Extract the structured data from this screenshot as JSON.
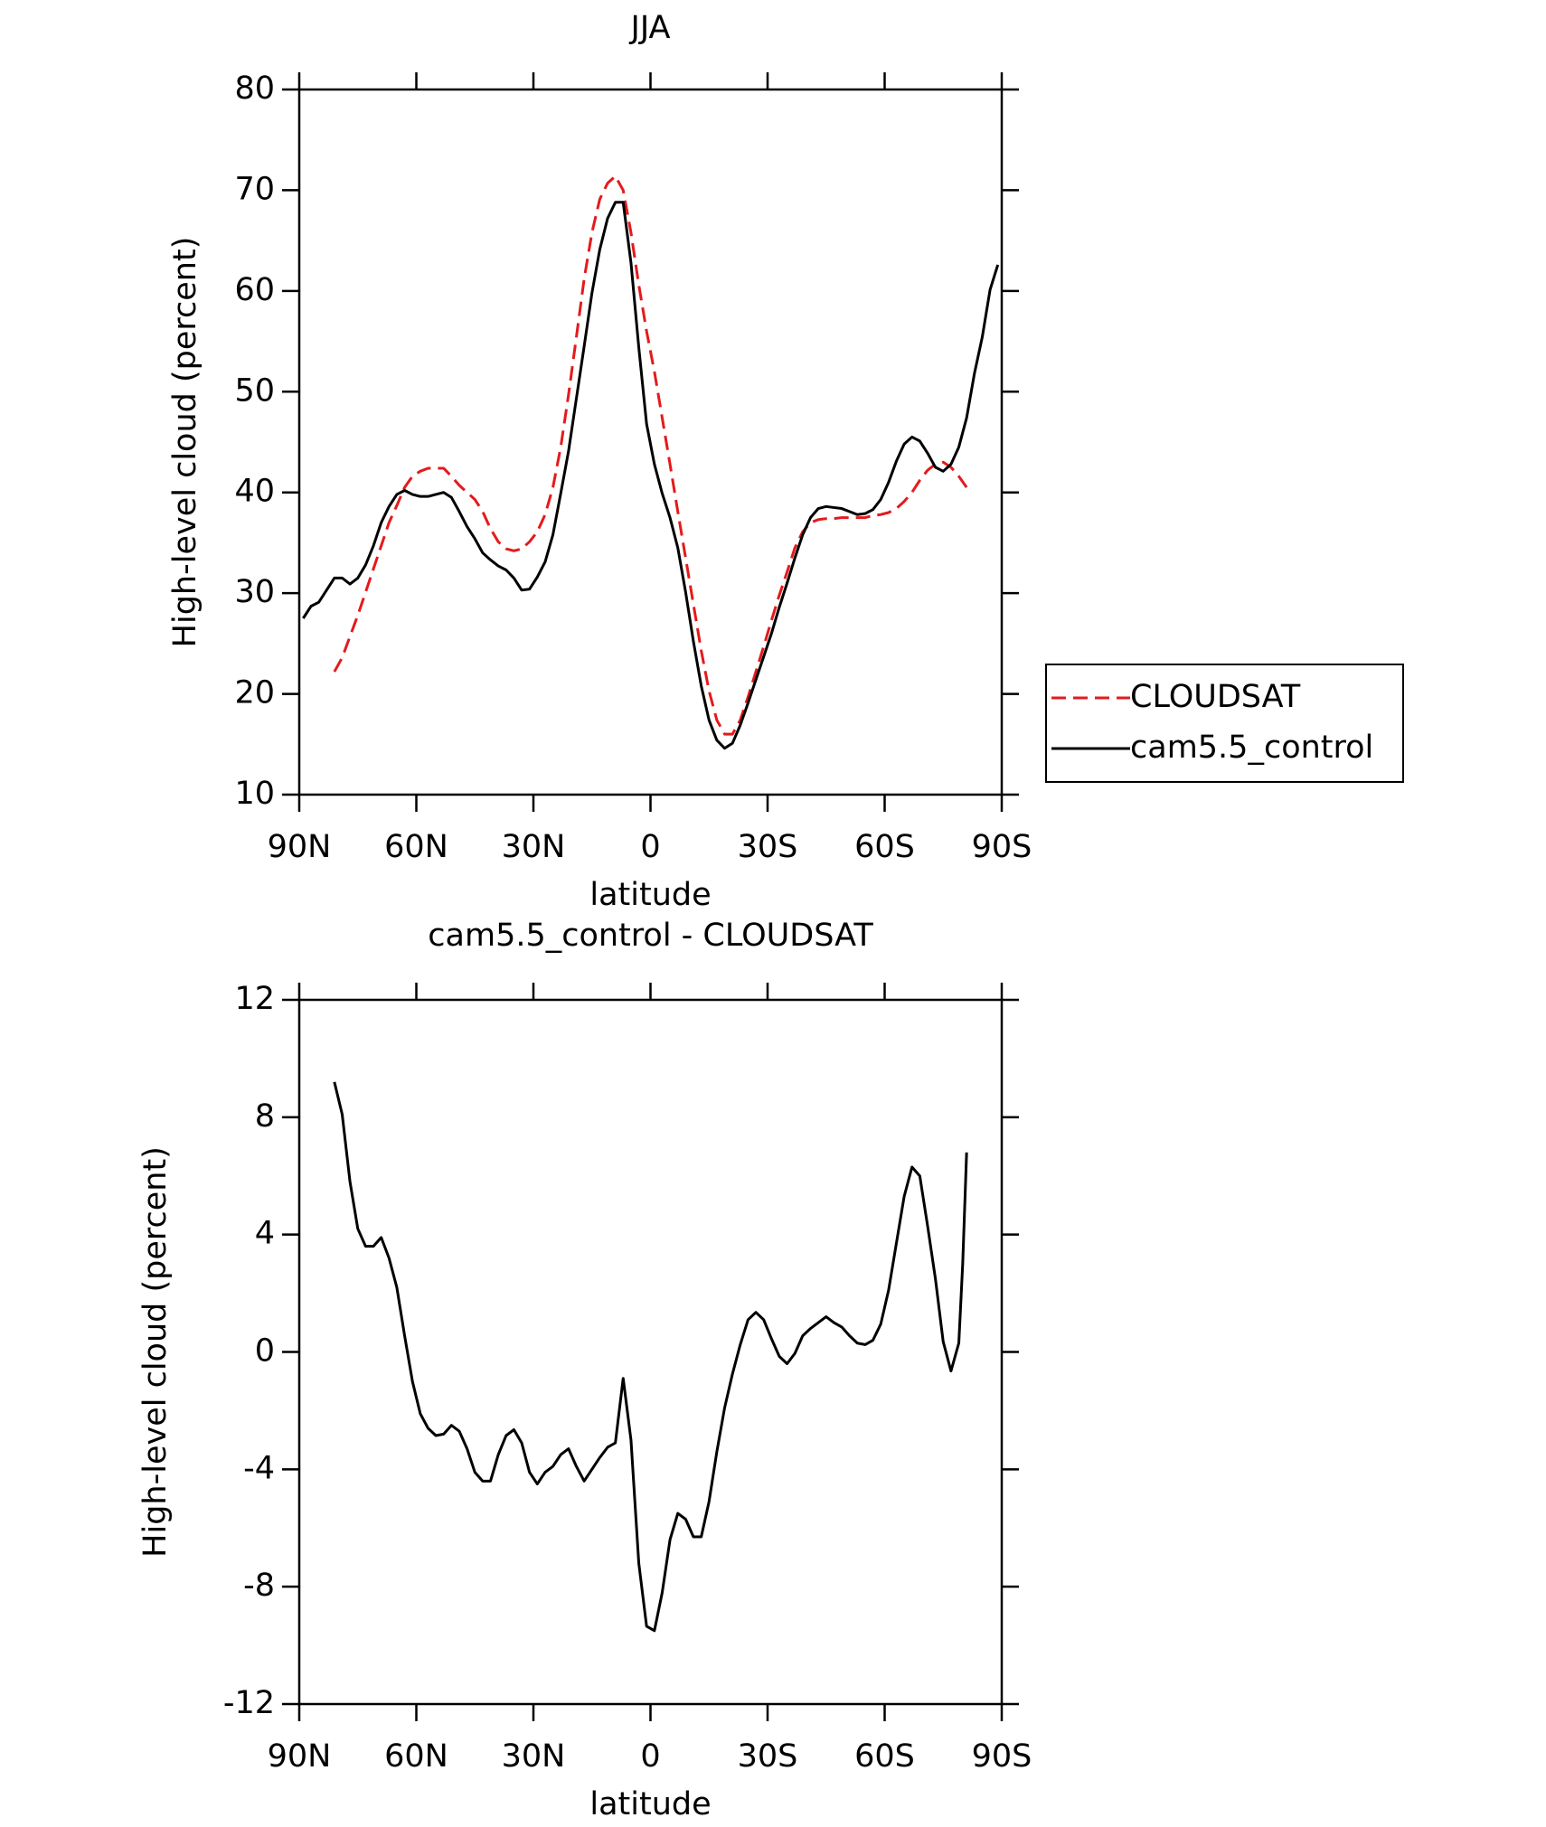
{
  "chart_data": [
    {
      "type": "line",
      "title": "JJA",
      "xlabel": "latitude",
      "ylabel": "High-level cloud (percent)",
      "xlim": [
        90,
        -90
      ],
      "xticks": [
        {
          "value": 90,
          "label": "90N"
        },
        {
          "value": 60,
          "label": "60N"
        },
        {
          "value": 30,
          "label": "30N"
        },
        0,
        {
          "value": -30,
          "label": "30S"
        },
        {
          "value": -60,
          "label": "60S"
        },
        {
          "value": -90,
          "label": "90S"
        }
      ],
      "ylim": [
        10,
        80
      ],
      "yticks": [
        10,
        20,
        30,
        40,
        50,
        60,
        70,
        80
      ],
      "legend": "right",
      "x": [
        89,
        87,
        85,
        83,
        81,
        79,
        77,
        75,
        73,
        71,
        69,
        67,
        65,
        63,
        61,
        59,
        57,
        55,
        53,
        51,
        49,
        47,
        45,
        43,
        41,
        39,
        37,
        35,
        33,
        31,
        29,
        27,
        25,
        23,
        21,
        19,
        17,
        15,
        13,
        11,
        9,
        7,
        5,
        3,
        1,
        -1,
        -3,
        -5,
        -7,
        -9,
        -11,
        -13,
        -15,
        -17,
        -19,
        -21,
        -23,
        -25,
        -27,
        -29,
        -31,
        -33,
        -35,
        -37,
        -39,
        -41,
        -43,
        -45,
        -47,
        -49,
        -51,
        -53,
        -55,
        -57,
        -59,
        -61,
        -63,
        -65,
        -67,
        -69,
        -71,
        -73,
        -75,
        -77,
        -79,
        -81,
        -83,
        -85,
        -87,
        -89
      ],
      "series": [
        {
          "name": "CLOUDSAT",
          "color": "#e41a1c",
          "style": "dashed",
          "values": [
            null,
            null,
            null,
            null,
            22.2,
            23.6,
            25.7,
            27.8,
            30.1,
            32.4,
            34.7,
            37.0,
            38.7,
            40.5,
            41.6,
            42.1,
            42.4,
            42.4,
            42.4,
            41.6,
            40.7,
            40.0,
            39.3,
            38.1,
            36.4,
            35.1,
            34.4,
            34.2,
            34.4,
            35.1,
            36.1,
            37.8,
            40.5,
            44.5,
            49.7,
            55.4,
            61.2,
            65.8,
            69.1,
            70.7,
            71.4,
            70.0,
            65.8,
            60.6,
            56.0,
            52.0,
            47.4,
            42.8,
            38.1,
            33.5,
            28.9,
            24.3,
            20.3,
            17.4,
            16.0,
            16.0,
            17.4,
            19.7,
            22.2,
            24.7,
            27.3,
            29.8,
            32.1,
            34.5,
            36.1,
            37.0,
            37.3,
            37.4,
            37.4,
            37.5,
            37.5,
            37.5,
            37.5,
            37.7,
            37.8,
            38.0,
            38.4,
            39.1,
            40.0,
            41.2,
            42.2,
            42.8,
            43.0,
            42.5,
            41.6,
            40.5,
            null,
            null,
            null,
            null
          ]
        },
        {
          "name": "cam5.5_control",
          "color": "#000000",
          "style": "solid",
          "values": [
            27.5,
            28.7,
            29.1,
            30.3,
            31.5,
            31.5,
            30.9,
            31.5,
            32.8,
            34.7,
            37.0,
            38.6,
            39.8,
            40.2,
            39.8,
            39.6,
            39.6,
            39.8,
            40.0,
            39.5,
            38.1,
            36.6,
            35.4,
            34.0,
            33.3,
            32.7,
            32.3,
            31.5,
            30.3,
            30.4,
            31.6,
            33.1,
            35.8,
            39.9,
            44.1,
            49.3,
            54.5,
            59.8,
            64.1,
            67.2,
            68.8,
            68.8,
            62.8,
            54.4,
            46.8,
            42.8,
            39.9,
            37.5,
            34.5,
            30.1,
            25.2,
            20.8,
            17.4,
            15.4,
            14.6,
            15.1,
            16.9,
            19.1,
            21.4,
            23.7,
            26.0,
            28.6,
            31.0,
            33.5,
            35.8,
            37.5,
            38.4,
            38.6,
            38.5,
            38.4,
            38.1,
            37.8,
            37.9,
            38.3,
            39.3,
            41.0,
            43.1,
            44.8,
            45.5,
            45.1,
            43.9,
            42.5,
            42.1,
            42.8,
            44.5,
            47.4,
            51.8,
            55.4,
            60.1,
            62.6
          ]
        }
      ]
    },
    {
      "type": "line",
      "title": "cam5.5_control - CLOUDSAT",
      "xlabel": "latitude",
      "ylabel": "High-level cloud (percent)",
      "xlim": [
        90,
        -90
      ],
      "xticks": [
        {
          "value": 90,
          "label": "90N"
        },
        {
          "value": 60,
          "label": "60N"
        },
        {
          "value": 30,
          "label": "30N"
        },
        0,
        {
          "value": -30,
          "label": "30S"
        },
        {
          "value": -60,
          "label": "60S"
        },
        {
          "value": -90,
          "label": "90S"
        }
      ],
      "ylim": [
        -12,
        12
      ],
      "yticks": [
        -12,
        -8,
        -4,
        0,
        4,
        8,
        12
      ],
      "x": [
        81,
        79,
        77,
        75,
        73,
        71,
        69,
        67,
        65,
        63,
        61,
        59,
        57,
        55,
        53,
        51,
        49,
        47,
        45,
        43,
        41,
        39,
        37,
        35,
        33,
        31,
        29,
        27,
        25,
        23,
        21,
        19,
        17,
        15,
        13,
        11,
        9,
        7,
        5,
        3,
        1,
        -1,
        -3,
        -5,
        -7,
        -9,
        -11,
        -13,
        -15,
        -17,
        -19,
        -21,
        -23,
        -25,
        -27,
        -29,
        -31,
        -33,
        -35,
        -37,
        -39,
        -41,
        -43,
        -45,
        -47,
        -49,
        -51,
        -53,
        -55,
        -57,
        -59,
        -61,
        -63,
        -65,
        -67,
        -69,
        -71,
        -73,
        -75,
        -77,
        -79,
        -80,
        -81
      ],
      "series": [
        {
          "color": "#000000",
          "style": "solid",
          "values": [
            9.2,
            8.1,
            5.8,
            4.2,
            3.6,
            3.6,
            3.9,
            3.2,
            2.2,
            0.55,
            -1.0,
            -2.1,
            -2.6,
            -2.85,
            -2.8,
            -2.5,
            -2.7,
            -3.3,
            -4.1,
            -4.4,
            -4.4,
            -3.5,
            -2.85,
            -2.65,
            -3.1,
            -4.1,
            -4.5,
            -4.1,
            -3.9,
            -3.5,
            -3.3,
            -3.9,
            -4.4,
            -4.0,
            -3.6,
            -3.25,
            -3.1,
            -0.9,
            -3.0,
            -7.2,
            -9.35,
            -9.5,
            -8.2,
            -6.4,
            -5.5,
            -5.7,
            -6.3,
            -6.3,
            -5.1,
            -3.4,
            -1.9,
            -0.75,
            0.25,
            1.1,
            1.35,
            1.1,
            0.45,
            -0.15,
            -0.4,
            -0.05,
            0.55,
            0.8,
            1.0,
            1.2,
            1.0,
            0.85,
            0.55,
            0.3,
            0.25,
            0.4,
            0.95,
            2.1,
            3.7,
            5.3,
            6.3,
            6.0,
            4.3,
            2.5,
            0.35,
            -0.65,
            0.3,
            3.0,
            6.8
          ]
        }
      ]
    }
  ]
}
